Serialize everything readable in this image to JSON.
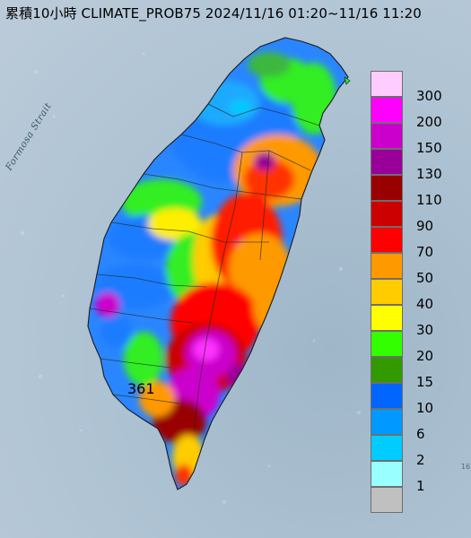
{
  "title": "累積10小時 CLIMATE_PROB75 2024/11/16 01:20~11/16 11:20",
  "sea_label": "Formosa Strait",
  "max_label": "361",
  "edge_text": "16",
  "legend": {
    "bins": [
      {
        "label": "300",
        "color": "#ffccff"
      },
      {
        "label": "200",
        "color": "#ff00ff"
      },
      {
        "label": "150",
        "color": "#cc00cc"
      },
      {
        "label": "130",
        "color": "#990099"
      },
      {
        "label": "110",
        "color": "#990000"
      },
      {
        "label": "90",
        "color": "#cc0000"
      },
      {
        "label": "70",
        "color": "#ff0000"
      },
      {
        "label": "50",
        "color": "#ff9900"
      },
      {
        "label": "40",
        "color": "#ffcc00"
      },
      {
        "label": "30",
        "color": "#ffff00"
      },
      {
        "label": "20",
        "color": "#33ff00"
      },
      {
        "label": "15",
        "color": "#339900"
      },
      {
        "label": "10",
        "color": "#0066ff"
      },
      {
        "label": "6",
        "color": "#0099ff"
      },
      {
        "label": "2",
        "color": "#00ccff"
      },
      {
        "label": "1",
        "color": "#99ffff"
      },
      {
        "label": "",
        "color": "#c0c0c0"
      }
    ]
  }
}
